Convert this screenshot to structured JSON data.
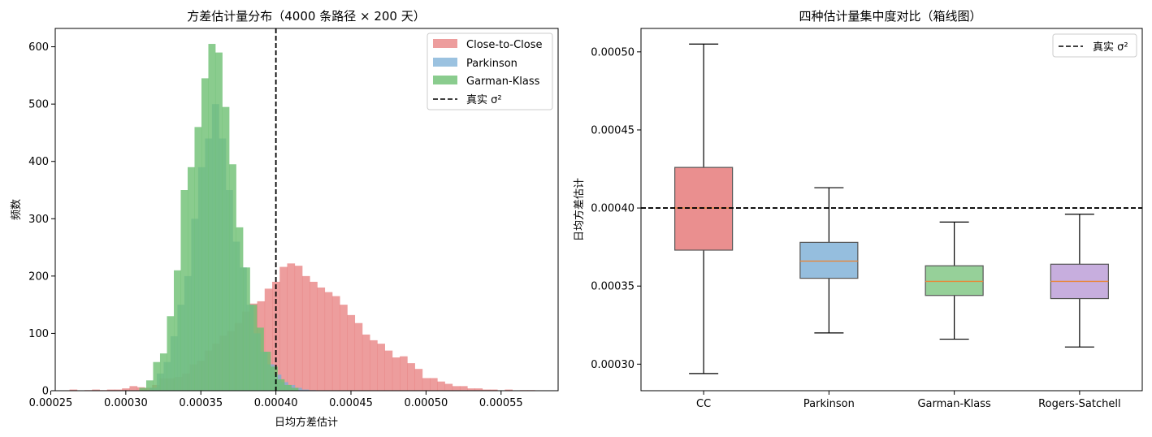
{
  "chart_data": [
    {
      "type": "histogram",
      "title": "方差估计量分布（4000 条路径 × 200 天）",
      "xlabel": "日均方差估计",
      "ylabel": "频数",
      "xlim": [
        0.000253,
        0.000588
      ],
      "ylim": [
        0,
        632
      ],
      "x_ticks": [
        "0.00025",
        "0.00030",
        "0.00035",
        "0.00040",
        "0.00045",
        "0.00050",
        "0.00055"
      ],
      "x_tick_values": [
        0.00025,
        0.0003,
        0.00035,
        0.0004,
        0.00045,
        0.0005,
        0.00055
      ],
      "y_ticks": [
        "0",
        "100",
        "200",
        "300",
        "400",
        "500",
        "600"
      ],
      "y_tick_values": [
        0,
        100,
        200,
        300,
        400,
        500,
        600
      ],
      "reference_line": {
        "value": 0.0004,
        "label": "真实 σ²",
        "style": "dashed",
        "color": "#000000"
      },
      "legend_position": "top-right",
      "series": [
        {
          "name": "Close-to-Close",
          "color": "#e57373",
          "opacity": 0.7,
          "bin_start": 0.0002625,
          "bin_width": 5e-06,
          "counts": [
            2,
            0,
            1,
            2,
            1,
            2,
            2,
            4,
            8,
            6,
            5,
            10,
            22,
            22,
            24,
            30,
            46,
            52,
            70,
            82,
            96,
            104,
            118,
            138,
            152,
            156,
            178,
            190,
            216,
            222,
            218,
            200,
            190,
            180,
            172,
            165,
            150,
            132,
            118,
            98,
            88,
            82,
            70,
            58,
            60,
            48,
            38,
            22,
            22,
            16,
            12,
            8,
            8,
            4,
            4,
            2,
            2,
            0,
            2,
            0,
            1,
            1
          ]
        },
        {
          "name": "Parkinson",
          "color": "#7aaed6",
          "opacity": 0.75,
          "bin_start": 0.000316,
          "bin_width": 4.6e-06,
          "counts": [
            5,
            30,
            50,
            95,
            150,
            200,
            300,
            390,
            440,
            500,
            440,
            350,
            260,
            215,
            150,
            100,
            68,
            46,
            28,
            15,
            10,
            5,
            2,
            1
          ]
        },
        {
          "name": "Garman-Klass",
          "color": "#6dbf72",
          "opacity": 0.8,
          "bin_start": 0.000309,
          "bin_width": 4.6e-06,
          "counts": [
            5,
            18,
            50,
            65,
            130,
            210,
            350,
            390,
            460,
            545,
            605,
            590,
            495,
            395,
            285,
            215,
            150,
            110,
            68,
            42,
            20,
            10,
            5
          ]
        }
      ]
    },
    {
      "type": "box",
      "title": "四种估计量集中度对比（箱线图）",
      "xlabel": "",
      "ylabel": "日均方差估计",
      "ylim": [
        0.000283,
        0.000515
      ],
      "y_ticks": [
        "0.00030",
        "0.00035",
        "0.00040",
        "0.00045",
        "0.00050"
      ],
      "y_tick_values": [
        0.0003,
        0.00035,
        0.0004,
        0.00045,
        0.0005
      ],
      "reference_line": {
        "value": 0.0004,
        "label": "真实 σ²",
        "style": "dashed",
        "color": "#000000"
      },
      "legend_position": "top-right",
      "categories": [
        "CC",
        "Parkinson",
        "Garman-Klass",
        "Rogers-Satchell"
      ],
      "boxes": [
        {
          "name": "CC",
          "whisker_low": 0.000294,
          "q1": 0.000373,
          "median": 0.0004,
          "q3": 0.000426,
          "whisker_high": 0.000505,
          "color": "#e57373"
        },
        {
          "name": "Parkinson",
          "whisker_low": 0.00032,
          "q1": 0.000355,
          "median": 0.000366,
          "q3": 0.000378,
          "whisker_high": 0.000413,
          "color": "#7aaed6"
        },
        {
          "name": "Garman-Klass",
          "whisker_low": 0.000316,
          "q1": 0.000344,
          "median": 0.000353,
          "q3": 0.000363,
          "whisker_high": 0.000391,
          "color": "#7cc47f"
        },
        {
          "name": "Rogers-Satchell",
          "whisker_low": 0.000311,
          "q1": 0.000342,
          "median": 0.000353,
          "q3": 0.000364,
          "whisker_high": 0.000396,
          "color": "#b99ad6"
        }
      ],
      "median_color": "#e8873a"
    }
  ]
}
